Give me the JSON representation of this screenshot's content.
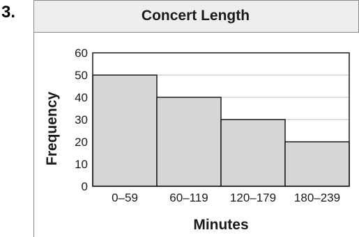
{
  "problem_number": "3.",
  "chart_data": {
    "type": "bar",
    "title": "Concert Length",
    "xlabel": "Minutes",
    "ylabel": "Frequency",
    "categories": [
      "0–59",
      "60–119",
      "120–179",
      "180–239"
    ],
    "values": [
      50,
      40,
      30,
      20
    ],
    "ylim": [
      0,
      60
    ],
    "yticks": [
      "0",
      "10",
      "20",
      "30",
      "40",
      "50",
      "60"
    ],
    "grid": true,
    "bar_color": "#d6d6d6"
  }
}
